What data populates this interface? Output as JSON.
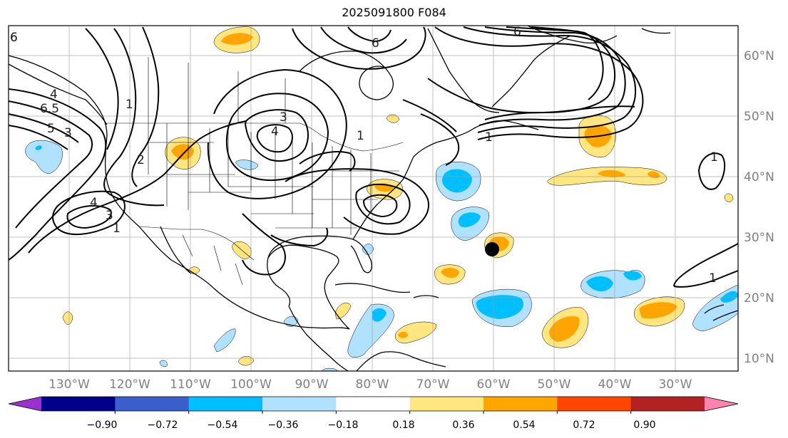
{
  "title": "2025091800 F084",
  "lat_labels": [
    "60°N",
    "50°N",
    "40°N",
    "30°N",
    "20°N",
    "10°N"
  ],
  "lon_labels": [
    "130°W",
    "120°W",
    "110°W",
    "100°W",
    "90°W",
    "80°W",
    "70°W",
    "60°W",
    "50°W",
    "40°W",
    "30°W"
  ],
  "colorbar": {
    "ticks": [
      "−0.90",
      "−0.72",
      "−0.54",
      "−0.36",
      "−0.18",
      "0.18",
      "0.36",
      "0.54",
      "0.72",
      "0.90"
    ],
    "colors": [
      "#9b30d0",
      "#00008b",
      "#3a5fcd",
      "#00bfff",
      "#b0e2ff",
      "#ffffff",
      "#ffe680",
      "#ffa500",
      "#ff4500",
      "#b22222",
      "#ff85b0"
    ]
  },
  "contour_labels": [
    "6",
    "6",
    "6",
    "6.5",
    "5",
    "4",
    "3",
    "2",
    "1",
    "4",
    "3",
    "1",
    "3",
    "4",
    "1",
    "1",
    "1",
    "6",
    "1"
  ],
  "storm_marker": {
    "lat": 28,
    "lon": -60
  }
}
